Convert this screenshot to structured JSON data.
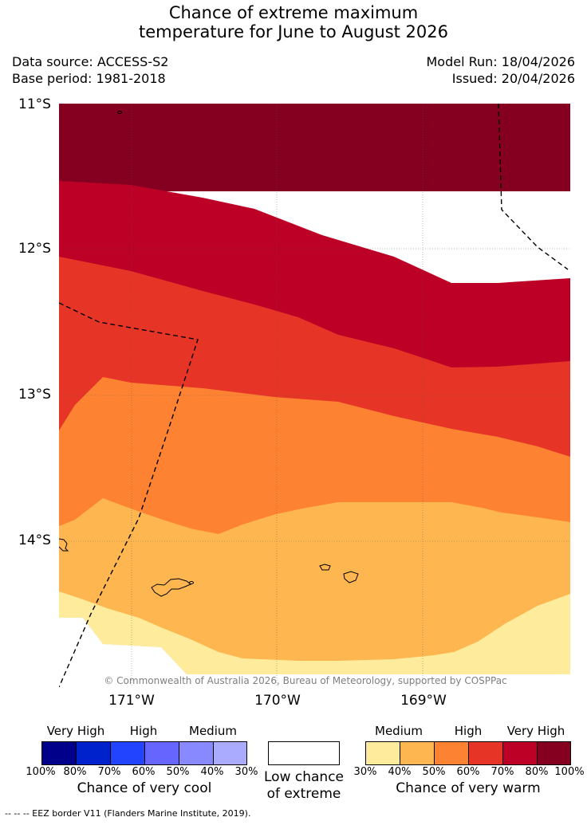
{
  "title": {
    "line1": "Chance of extreme maximum",
    "line2": "temperature for June to August 2026"
  },
  "meta": {
    "data_source": "Data source: ACCESS-S2",
    "base_period": "Base period: 1981-2018",
    "model_run": "Model Run: 18/04/2026",
    "issued": "Issued: 20/04/2026"
  },
  "map": {
    "lat_labels": [
      "11°S",
      "12°S",
      "13°S",
      "14°S"
    ],
    "lon_labels": [
      "171°W",
      "170°W",
      "169°W"
    ],
    "copyright": "© Commonwealth of Australia 2026, Bureau of Meteorology, supported by COSPPac",
    "band_colors": {
      "very_high_80_100": "#850020",
      "high_70_80": "#bd0026",
      "high_60_70": "#e63526",
      "medium_50_60": "#fd8232",
      "medium_40_50": "#feb750",
      "low_30_40": "#feeb9b"
    }
  },
  "legend": {
    "cool": {
      "headers": [
        "Very High",
        "High",
        "Medium"
      ],
      "ticks": [
        "100%",
        "80%",
        "70%",
        "60%",
        "50%",
        "40%",
        "30%"
      ],
      "colors": [
        "#00008b",
        "#0022cc",
        "#2244ff",
        "#6666ff",
        "#8888ff",
        "#aaaaff"
      ],
      "title": "Chance of very cool"
    },
    "neutral": {
      "line1": "Low chance",
      "line2": "of extreme",
      "color": "#ffffff"
    },
    "warm": {
      "headers": [
        "Medium",
        "High",
        "Very High"
      ],
      "ticks": [
        "30%",
        "40%",
        "50%",
        "60%",
        "70%",
        "80%",
        "100%"
      ],
      "colors": [
        "#feeb9b",
        "#feb750",
        "#fd8232",
        "#e63526",
        "#bd0026",
        "#850020"
      ],
      "title": "Chance of very warm"
    }
  },
  "footnote": "--  --  -- EEZ border V11 (Flanders Marine Institute, 2019)."
}
